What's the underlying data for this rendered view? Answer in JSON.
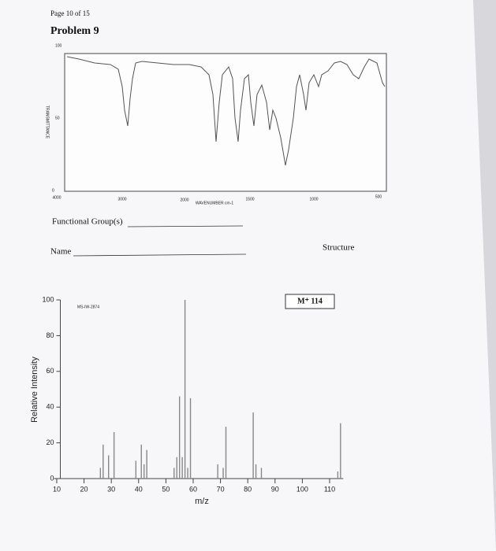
{
  "header": {
    "page": "Page 10 of 15",
    "problem": "Problem 9"
  },
  "ir_spectrum": {
    "y_label": "TRANSMITTANCE",
    "y_ticks": [
      "100",
      "50",
      "0"
    ],
    "x_ticks": [
      "4000",
      "3000",
      "2000",
      "1500",
      "1000",
      "500"
    ],
    "x_label": "WAVENUMBER cm-1"
  },
  "fields": {
    "functional_groups": "Functional Group(s)",
    "name": "Name",
    "structure": "Structure"
  },
  "mass_spectrum": {
    "type": "bar",
    "sample_id": "MS-IW-2874",
    "annotation": "M⁺ 114",
    "x_label": "m/z",
    "y_label": "Relative Intensity",
    "xlim": [
      9,
      115
    ],
    "ylim": [
      0,
      100
    ],
    "xticks": [
      10,
      20,
      30,
      40,
      50,
      60,
      70,
      80,
      90,
      100,
      110
    ],
    "yticks": [
      0,
      20,
      40,
      60,
      80,
      100
    ],
    "color": "#888888",
    "x": [
      26,
      27,
      29,
      31,
      39,
      41,
      42,
      43,
      53,
      54,
      55,
      56,
      57,
      58,
      59,
      69,
      71,
      72,
      82,
      83,
      85,
      113,
      114
    ],
    "values": [
      6,
      19,
      13,
      26,
      10,
      19,
      8,
      16,
      6,
      12,
      46,
      12,
      100,
      6,
      45,
      8,
      6,
      29,
      37,
      8,
      6,
      4,
      31
    ]
  }
}
